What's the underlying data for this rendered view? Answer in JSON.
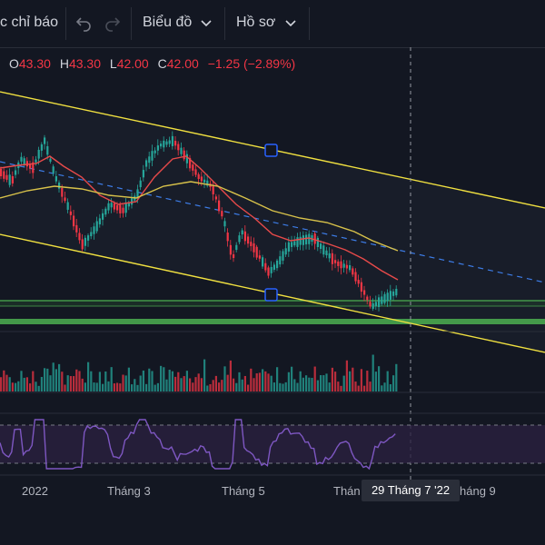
{
  "toolbar": {
    "indicators_label": "c chỉ báo",
    "chart_menu_label": "Biểu đồ",
    "profile_menu_label": "Hồ sơ",
    "icons": [
      "undo-icon",
      "redo-icon",
      "chevron-down-icon"
    ]
  },
  "ohlc": {
    "open_key": "O",
    "open": "43.30",
    "high_key": "H",
    "high": "43.30",
    "low_key": "L",
    "low": "42.00",
    "close_key": "C",
    "close": "42.00",
    "change": "−1.25 (−2.89%)"
  },
  "x_axis": {
    "labels": [
      "2022",
      "Tháng 3",
      "Tháng 5",
      "Thán",
      "háng 9"
    ],
    "crosshair_label": "29 Tháng 7 '22"
  },
  "colors": {
    "background": "#131722",
    "up": "#26a69a",
    "down": "#f23645",
    "trend_line": "#f0e040",
    "ma_red": "#e84a4a",
    "ma_yellow": "#d8c24a",
    "dashed": "#2962ff",
    "support": "#4caf50",
    "rsi": "#7e57c2"
  }
}
